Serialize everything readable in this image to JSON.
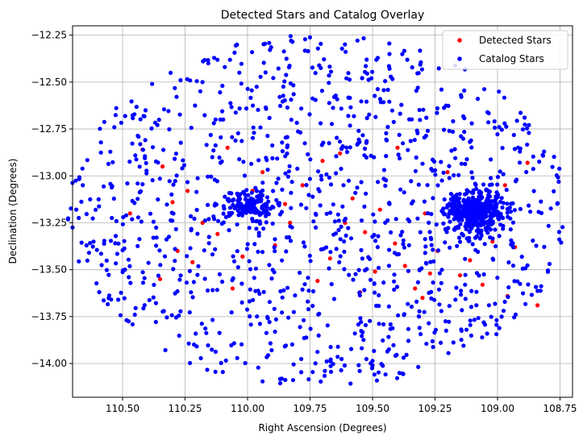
{
  "chart_data": {
    "type": "scatter",
    "title": "Detected Stars and Catalog Overlay",
    "xlabel": "Right Ascension (Degrees)",
    "ylabel": "Declination (Degrees)",
    "xlim": [
      110.7,
      108.7
    ],
    "ylim": [
      -14.18,
      -12.2
    ],
    "x_inverted": true,
    "xticks": [
      110.5,
      110.25,
      110.0,
      109.75,
      109.5,
      109.25,
      109.0,
      108.75
    ],
    "xtick_labels": [
      "110.50",
      "110.25",
      "110.00",
      "109.75",
      "109.50",
      "109.25",
      "109.00",
      "108.75"
    ],
    "yticks": [
      -14.0,
      -13.75,
      -13.5,
      -13.25,
      -13.0,
      -12.75,
      -12.5,
      -12.25
    ],
    "ytick_labels": [
      "−14.00",
      "−13.75",
      "−13.50",
      "−13.25",
      "−13.00",
      "−12.75",
      "−12.50",
      "−12.25"
    ],
    "grid": true,
    "legend_position": "top-right",
    "field": {
      "center_ra": 109.72,
      "center_dec": -13.19,
      "radius_deg": 0.98
    },
    "clusters": [
      {
        "ra": 109.99,
        "dec": -13.16,
        "spread_ra": 0.09,
        "spread_dec": 0.06,
        "count": 150
      },
      {
        "ra": 109.09,
        "dec": -13.19,
        "spread_ra": 0.1,
        "spread_dec": 0.09,
        "count": 400
      }
    ],
    "series": [
      {
        "name": "Detected Stars",
        "color": "#ff0000",
        "points": [
          [
            110.28,
            -13.4
          ],
          [
            110.35,
            -13.55
          ],
          [
            110.47,
            -13.2
          ],
          [
            110.42,
            -12.86
          ],
          [
            110.34,
            -12.95
          ],
          [
            110.24,
            -13.08
          ],
          [
            110.18,
            -13.25
          ],
          [
            110.22,
            -13.46
          ],
          [
            110.12,
            -13.31
          ],
          [
            110.06,
            -13.6
          ],
          [
            110.02,
            -13.43
          ],
          [
            109.94,
            -12.98
          ],
          [
            109.89,
            -13.37
          ],
          [
            109.83,
            -13.25
          ],
          [
            109.78,
            -13.05
          ],
          [
            109.72,
            -13.56
          ],
          [
            109.67,
            -13.44
          ],
          [
            109.63,
            -12.88
          ],
          [
            109.58,
            -13.12
          ],
          [
            109.53,
            -13.3
          ],
          [
            109.49,
            -13.51
          ],
          [
            109.45,
            -13.02
          ],
          [
            109.41,
            -13.36
          ],
          [
            109.37,
            -13.48
          ],
          [
            109.33,
            -13.6
          ],
          [
            109.29,
            -13.2
          ],
          [
            109.24,
            -13.4
          ],
          [
            109.2,
            -12.98
          ],
          [
            109.15,
            -13.53
          ],
          [
            109.11,
            -13.45
          ],
          [
            109.06,
            -13.58
          ],
          [
            109.02,
            -13.35
          ],
          [
            108.97,
            -13.05
          ],
          [
            108.93,
            -13.38
          ],
          [
            108.88,
            -12.93
          ],
          [
            108.84,
            -13.69
          ],
          [
            109.98,
            -13.08
          ],
          [
            109.55,
            -13.62
          ],
          [
            109.61,
            -13.25
          ],
          [
            109.85,
            -13.15
          ],
          [
            110.08,
            -12.85
          ],
          [
            110.3,
            -13.14
          ],
          [
            109.4,
            -12.85
          ],
          [
            109.7,
            -12.92
          ],
          [
            109.3,
            -13.65
          ],
          [
            108.96,
            -13.64
          ],
          [
            109.47,
            -13.18
          ],
          [
            109.27,
            -13.52
          ]
        ]
      },
      {
        "name": "Catalog Stars",
        "color": "#0000ff",
        "points": []
      }
    ]
  }
}
